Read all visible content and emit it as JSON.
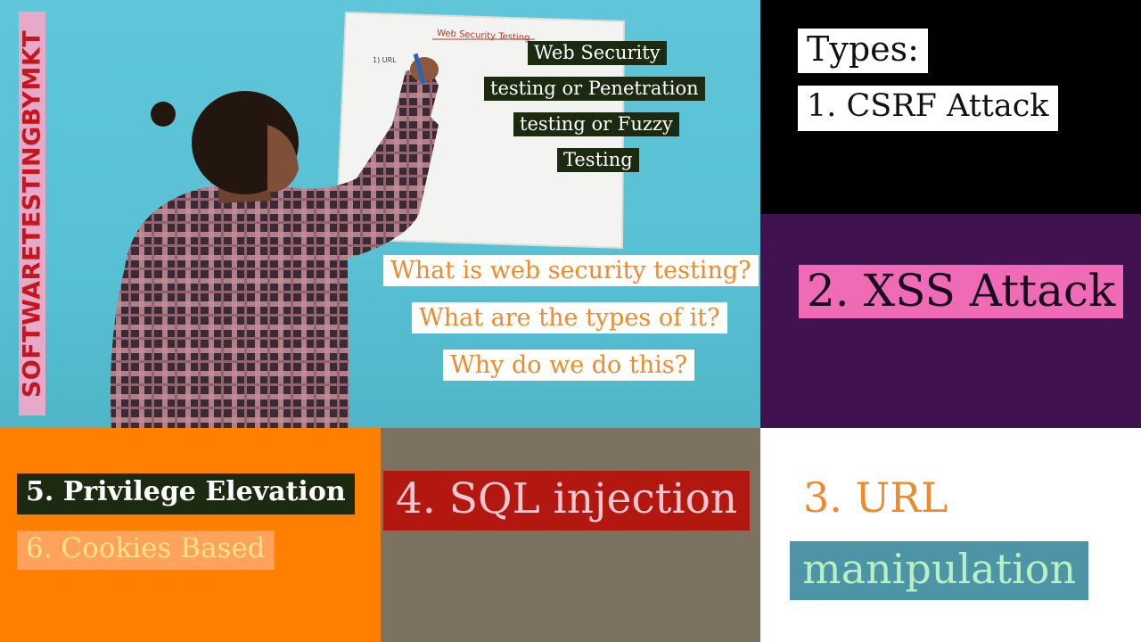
{
  "channel": {
    "name": "SOFTWARETESTINGBYMKT"
  },
  "whiteboard": {
    "heading": "Web Security Testing",
    "scribble": "1) URL"
  },
  "title_tags": [
    "Web Security",
    "testing or Penetration",
    "testing or Fuzzy",
    "Testing"
  ],
  "questions": [
    "What is web security testing?",
    "What are the types of it?",
    "Why do we do this?"
  ],
  "types": {
    "heading": "Types:",
    "csrf": "1. CSRF Attack",
    "xss": "2. XSS Attack",
    "url_line1": "3. URL",
    "url_line2": "manipulation",
    "sql": "4. SQL injection",
    "privilege": "5. Privilege Elevation",
    "cookies": "6. Cookies Based"
  },
  "colors": {
    "orange_text": "#f0892a",
    "xss_panel": "#42114f",
    "xss_tag": "#f06bb6",
    "orange_panel": "#ff7f00",
    "sql_panel": "#7b7262",
    "sql_tag": "#b2180f",
    "url_tag": "#4d95a6"
  }
}
